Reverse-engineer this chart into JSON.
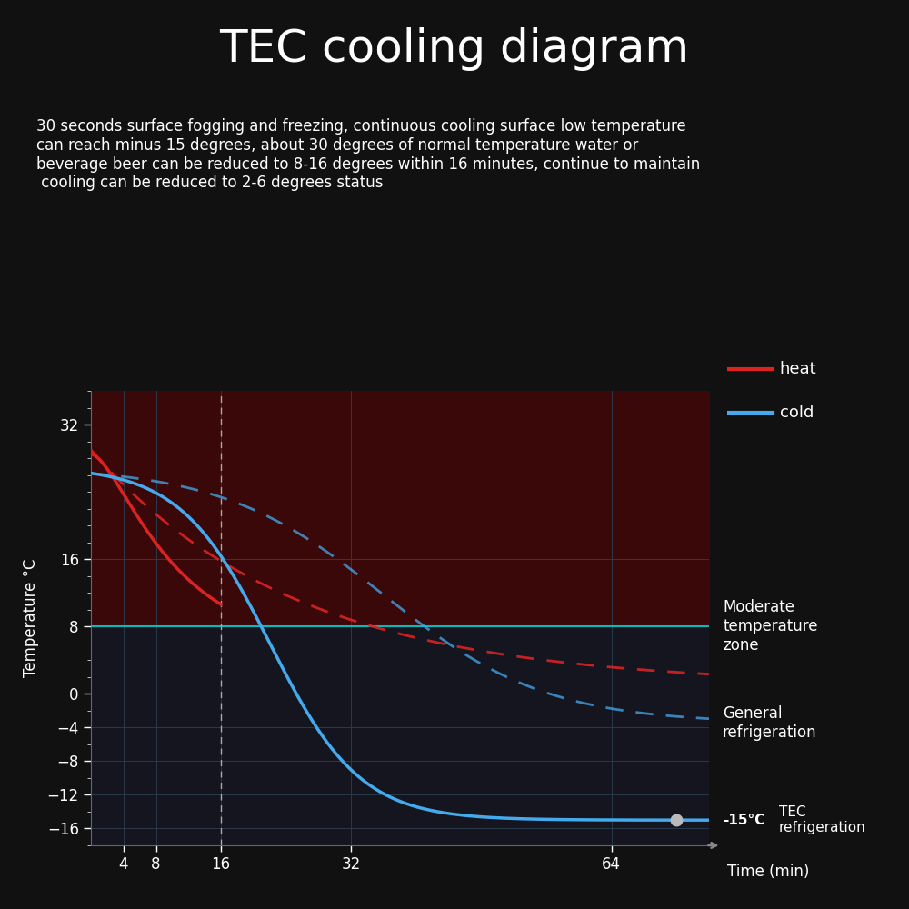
{
  "title": "TEC cooling diagram",
  "subtitle": "30 seconds surface fogging and freezing, continuous cooling surface low temperature\ncan reach minus 15 degrees, about 30 degrees of normal temperature water or\nbeverage beer can be reduced to 8-16 degrees within 16 minutes, continue to maintain\n cooling can be reduced to 2-6 degrees status",
  "ylabel": "Temperature °C",
  "xlabel": "Time (min)",
  "bg_color": "#111111",
  "plot_bg_color": "#151520",
  "red_bg_color": "#3a0808",
  "grid_color": "#2a3a4a",
  "heat_color": "#dd2222",
  "cold_color": "#44aaee",
  "moderate_line_color": "#00cccc",
  "yticks": [
    32,
    16,
    8,
    0,
    -4,
    -8,
    -12,
    -16
  ],
  "xticks": [
    4,
    8,
    16,
    32,
    64
  ],
  "xmin": 0,
  "xmax": 76,
  "ymin": -18,
  "ymax": 36,
  "moderate_temp": 8,
  "vline_x": 16,
  "moderate_label": "Moderate\ntemperature\nzone",
  "general_label": "General\nrefrigeration",
  "tec_label": "TEC\nrefrigeration",
  "tec_annotation": "-15°C",
  "legend_heat": "heat",
  "legend_cold": "cold",
  "title_fontsize": 36,
  "subtitle_fontsize": 12,
  "label_fontsize": 12,
  "tick_fontsize": 12,
  "annotation_fontsize": 12
}
